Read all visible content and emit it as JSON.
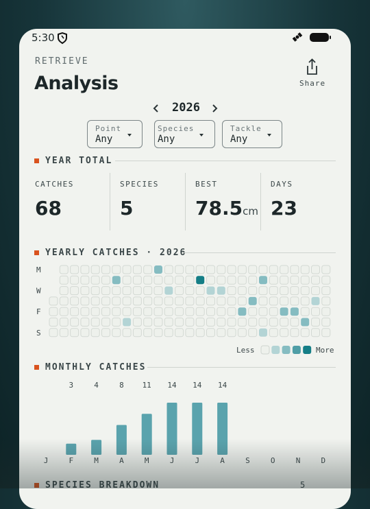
{
  "status_bar": {
    "time": "5:30"
  },
  "header": {
    "eyebrow": "RETRIEVE",
    "title": "Analysis",
    "share": "Share"
  },
  "year_selector": {
    "year": "2026"
  },
  "filters": [
    {
      "label": "Point",
      "value": "Any"
    },
    {
      "label": "Species",
      "value": "Any"
    },
    {
      "label": "Tackle",
      "value": "Any"
    }
  ],
  "year_total": {
    "title": "YEAR TOTAL",
    "stats": [
      {
        "label": "CATCHES",
        "value": "68"
      },
      {
        "label": "SPECIES",
        "value": "5"
      },
      {
        "label": "BEST",
        "value": "78.5",
        "unit": "cm"
      },
      {
        "label": "DAYS",
        "value": "23"
      }
    ]
  },
  "heatmap": {
    "title": "YEARLY CATCHES · 2026",
    "day_labels": [
      "M",
      "W",
      "F",
      "S"
    ],
    "legend": {
      "less": "Less",
      "more": "More"
    },
    "colors": [
      "#eef1ec",
      "#b3d4d5",
      "#85bcc1",
      "#4f9ea6",
      "#147e86"
    ],
    "levels": [
      [
        null,
        0,
        0,
        0,
        0,
        0,
        0,
        0,
        0,
        0,
        2,
        0,
        0,
        0,
        0,
        0,
        0,
        0,
        0,
        0,
        0,
        0,
        0,
        0,
        0,
        0,
        0
      ],
      [
        null,
        0,
        0,
        0,
        0,
        0,
        2,
        0,
        0,
        0,
        0,
        0,
        0,
        0,
        4,
        0,
        0,
        0,
        0,
        0,
        2,
        0,
        0,
        0,
        0,
        0,
        0
      ],
      [
        null,
        0,
        0,
        0,
        0,
        0,
        0,
        0,
        0,
        0,
        0,
        1,
        0,
        0,
        0,
        1,
        1,
        0,
        0,
        0,
        0,
        0,
        0,
        0,
        0,
        0,
        0
      ],
      [
        0,
        0,
        0,
        0,
        0,
        0,
        0,
        0,
        0,
        0,
        0,
        0,
        0,
        0,
        0,
        0,
        0,
        0,
        0,
        2,
        0,
        0,
        0,
        0,
        0,
        1,
        0
      ],
      [
        0,
        0,
        0,
        0,
        0,
        0,
        0,
        0,
        0,
        0,
        0,
        0,
        0,
        0,
        0,
        0,
        0,
        0,
        2,
        0,
        0,
        0,
        2,
        2,
        0,
        0,
        0
      ],
      [
        0,
        0,
        0,
        0,
        0,
        0,
        0,
        1,
        0,
        0,
        0,
        0,
        0,
        0,
        0,
        0,
        0,
        0,
        0,
        0,
        0,
        0,
        0,
        0,
        2,
        0,
        0
      ],
      [
        0,
        0,
        0,
        0,
        0,
        0,
        0,
        0,
        0,
        0,
        0,
        0,
        0,
        0,
        0,
        0,
        0,
        0,
        0,
        0,
        1,
        0,
        0,
        0,
        0,
        0,
        0
      ]
    ]
  },
  "chart_data": {
    "type": "bar",
    "title": "MONTHLY CATCHES",
    "color": "#5aa3ad",
    "categories": [
      "J",
      "F",
      "M",
      "A",
      "M",
      "J",
      "J",
      "A",
      "S",
      "O",
      "N",
      "D"
    ],
    "values": [
      0,
      3,
      4,
      8,
      11,
      14,
      14,
      14,
      0,
      0,
      0,
      0
    ]
  },
  "next_section": {
    "title": "SPECIES BREAKDOWN",
    "count": "5"
  }
}
